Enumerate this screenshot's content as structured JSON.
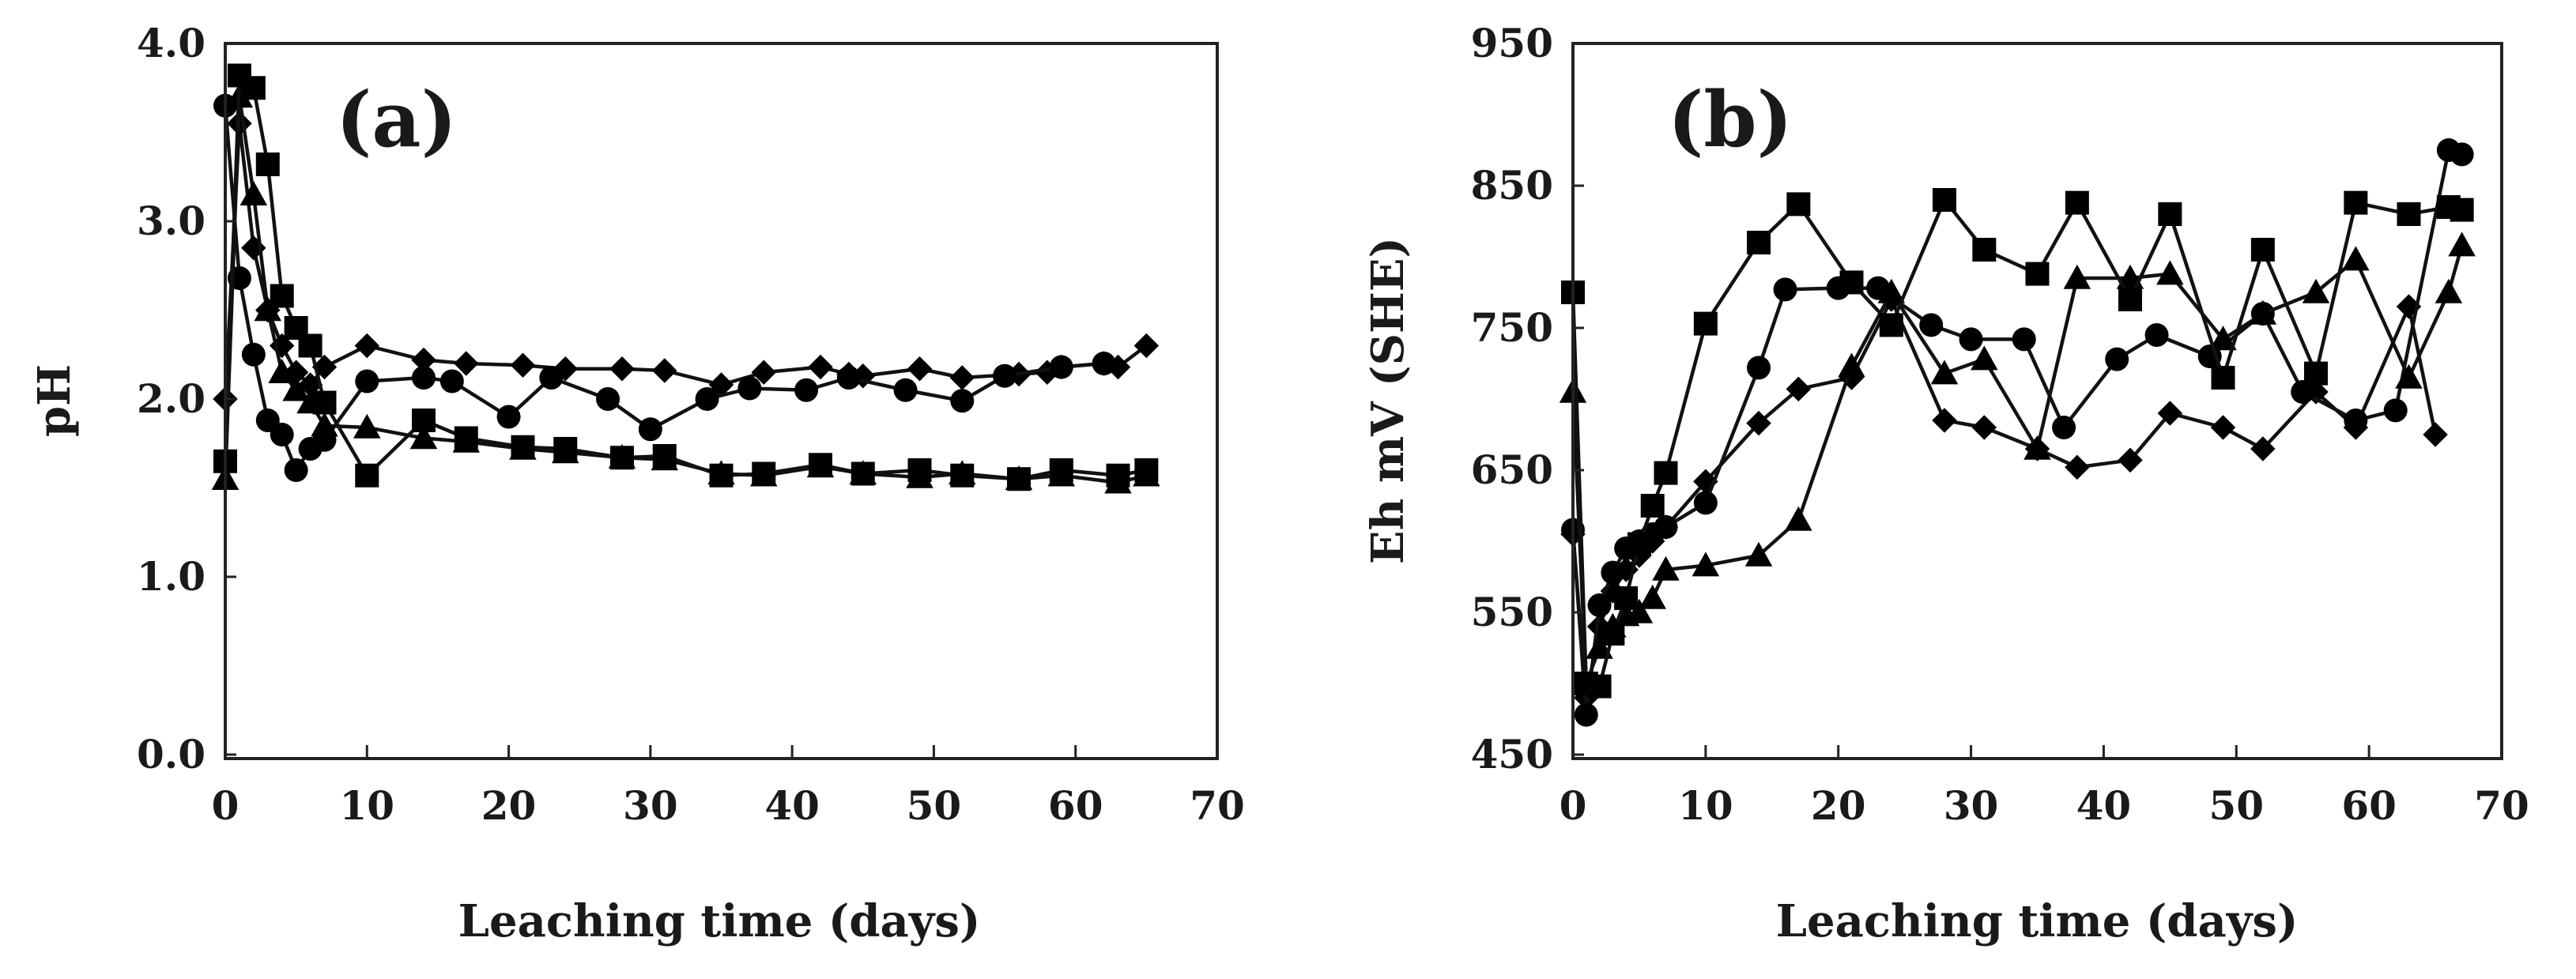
{
  "chart_data": [
    {
      "type": "line",
      "panel_label": "(a)",
      "xlabel": "Leaching time (days)",
      "ylabel": "pH",
      "xlim": [
        0,
        70
      ],
      "ylim": [
        0.0,
        4.0
      ],
      "xticks": [
        "0",
        "10",
        "20",
        "30",
        "40",
        "50",
        "60",
        "70"
      ],
      "yticks": [
        "0.0",
        "1.0",
        "2.0",
        "3.0",
        "4.0"
      ],
      "series": [
        {
          "name": "diamond",
          "marker": "diamond",
          "x": [
            0,
            1,
            2,
            3,
            4,
            5,
            6,
            7,
            10,
            14,
            17,
            21,
            24,
            28,
            31,
            35,
            38,
            42,
            44,
            45,
            49,
            52,
            56,
            58,
            59,
            62,
            63,
            65
          ],
          "y": [
            2.0,
            3.55,
            2.85,
            2.5,
            2.3,
            2.15,
            2.08,
            2.18,
            2.3,
            2.22,
            2.2,
            2.19,
            2.17,
            2.17,
            2.16,
            2.08,
            2.15,
            2.18,
            2.14,
            2.13,
            2.17,
            2.12,
            2.14,
            2.15,
            2.18,
            2.2,
            2.18,
            2.3
          ]
        },
        {
          "name": "circle",
          "marker": "circle",
          "x": [
            0,
            1,
            2,
            3,
            4,
            5,
            6,
            7,
            10,
            14,
            16,
            20,
            23,
            27,
            30,
            34,
            37,
            41,
            44,
            48,
            52,
            55,
            59,
            62
          ],
          "y": [
            3.65,
            2.68,
            2.25,
            1.88,
            1.8,
            1.6,
            1.72,
            1.77,
            2.1,
            2.12,
            2.1,
            1.9,
            2.12,
            2.0,
            1.83,
            2.0,
            2.06,
            2.05,
            2.12,
            2.05,
            1.99,
            2.13,
            2.18,
            2.2
          ]
        },
        {
          "name": "triangle",
          "marker": "triangle",
          "x": [
            0,
            1,
            2,
            3,
            4,
            5,
            6,
            7,
            10,
            14,
            17,
            21,
            24,
            28,
            31,
            35,
            38,
            42,
            45,
            49,
            52,
            56,
            59,
            63,
            65
          ],
          "y": [
            1.55,
            3.7,
            3.15,
            2.5,
            2.15,
            2.05,
            1.98,
            1.85,
            1.84,
            1.78,
            1.76,
            1.72,
            1.7,
            1.67,
            1.66,
            1.58,
            1.57,
            1.62,
            1.58,
            1.56,
            1.58,
            1.55,
            1.57,
            1.53,
            1.57
          ]
        },
        {
          "name": "square",
          "marker": "square",
          "x": [
            0,
            1,
            2,
            3,
            4,
            5,
            6,
            7,
            10,
            14,
            17,
            21,
            24,
            28,
            31,
            35,
            38,
            42,
            45,
            49,
            52,
            56,
            59,
            63,
            65
          ],
          "y": [
            1.65,
            3.82,
            3.75,
            3.32,
            2.58,
            2.4,
            2.3,
            1.98,
            1.57,
            1.88,
            1.78,
            1.73,
            1.72,
            1.67,
            1.68,
            1.57,
            1.58,
            1.63,
            1.58,
            1.6,
            1.57,
            1.55,
            1.6,
            1.57,
            1.6
          ]
        }
      ]
    },
    {
      "type": "line",
      "panel_label": "(b)",
      "xlabel": "Leaching time (days)",
      "ylabel": "Eh mV (SHE)",
      "xlim": [
        0,
        70
      ],
      "ylim": [
        450,
        950
      ],
      "xticks": [
        "0",
        "10",
        "20",
        "30",
        "40",
        "50",
        "60",
        "70"
      ],
      "yticks": [
        "450",
        "550",
        "650",
        "750",
        "850",
        "950"
      ],
      "series": [
        {
          "name": "diamond",
          "marker": "diamond",
          "x": [
            0,
            1,
            2,
            3,
            4,
            5,
            6,
            7,
            10,
            14,
            17,
            21,
            24,
            28,
            31,
            35,
            38,
            42,
            45,
            49,
            52,
            56,
            59,
            63,
            65
          ],
          "y": [
            605,
            490,
            540,
            565,
            580,
            590,
            600,
            610,
            642,
            683,
            707,
            715,
            770,
            685,
            680,
            665,
            652,
            657,
            690,
            680,
            665,
            705,
            680,
            765,
            675
          ]
        },
        {
          "name": "circle",
          "marker": "circle",
          "x": [
            0,
            1,
            2,
            3,
            4,
            5,
            6,
            7,
            10,
            14,
            16,
            20,
            23,
            27,
            30,
            34,
            37,
            41,
            44,
            48,
            52,
            55,
            59,
            62,
            66,
            67
          ],
          "y": [
            608,
            478,
            555,
            578,
            595,
            600,
            605,
            610,
            627,
            722,
            777,
            778,
            778,
            752,
            742,
            742,
            680,
            728,
            745,
            730,
            760,
            705,
            685,
            692,
            875,
            872
          ]
        },
        {
          "name": "triangle",
          "marker": "triangle",
          "x": [
            0,
            1,
            2,
            3,
            4,
            5,
            6,
            7,
            10,
            14,
            17,
            21,
            24,
            28,
            31,
            35,
            38,
            42,
            45,
            49,
            52,
            56,
            59,
            63,
            66,
            67
          ],
          "y": [
            705,
            500,
            525,
            540,
            548,
            550,
            560,
            580,
            583,
            590,
            615,
            723,
            775,
            718,
            728,
            665,
            785,
            785,
            788,
            742,
            760,
            775,
            798,
            715,
            775,
            808
          ]
        },
        {
          "name": "square",
          "marker": "square",
          "x": [
            0,
            1,
            2,
            3,
            4,
            5,
            6,
            7,
            10,
            14,
            17,
            21,
            24,
            28,
            31,
            35,
            38,
            42,
            45,
            49,
            52,
            56,
            59,
            63,
            66,
            67
          ],
          "y": [
            775,
            500,
            498,
            535,
            560,
            598,
            625,
            648,
            753,
            810,
            837,
            782,
            752,
            840,
            805,
            788,
            838,
            770,
            830,
            715,
            805,
            718,
            838,
            830,
            835,
            833
          ]
        }
      ]
    }
  ]
}
